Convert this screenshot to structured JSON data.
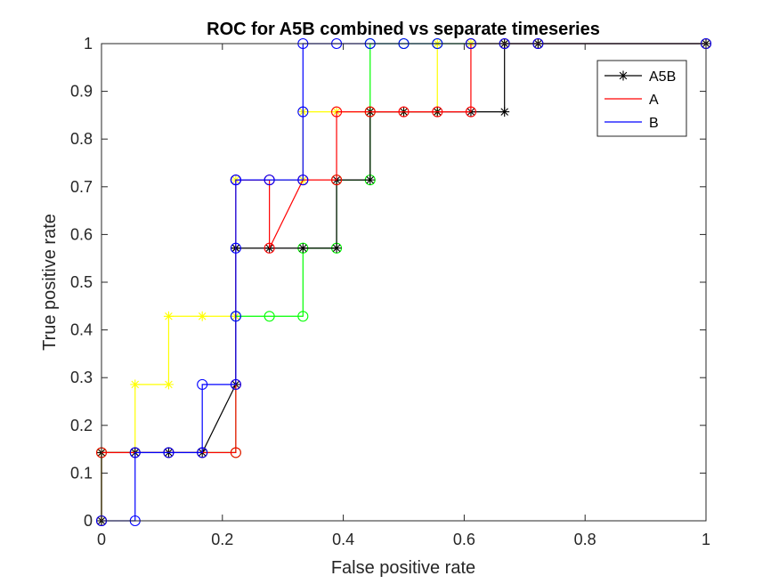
{
  "chart_data": {
    "type": "line",
    "title": "ROC for A5B combined vs separate timeseries",
    "xlabel": "False positive rate",
    "ylabel": "True positive rate",
    "xlim": [
      0,
      1
    ],
    "ylim": [
      0,
      1
    ],
    "xticks": [
      "0",
      "0.2",
      "0.4",
      "0.6",
      "0.8",
      "1"
    ],
    "yticks": [
      "0",
      "0.1",
      "0.2",
      "0.3",
      "0.4",
      "0.5",
      "0.6",
      "0.7",
      "0.8",
      "0.9",
      "1"
    ],
    "grid": false,
    "legend_position": "top-right",
    "series": [
      {
        "color": "#ffff00",
        "marker": "star",
        "x": [
          0,
          0,
          0.0556,
          0.0556,
          0.1111,
          0.1111,
          0.1667,
          0.2222,
          0.2222,
          0.2222,
          0.3333,
          0.3333,
          0.3889,
          0.4444,
          0.5,
          0.5556,
          0.5556,
          0.6111,
          0.6667,
          0.7222,
          1
        ],
        "y": [
          0,
          0.1429,
          0.1429,
          0.2857,
          0.2857,
          0.4286,
          0.4286,
          0.4286,
          0.5714,
          0.7143,
          0.7143,
          0.8571,
          0.8571,
          0.8571,
          0.8571,
          0.8571,
          1,
          1,
          1,
          1,
          1
        ]
      },
      {
        "color": "#00ff00",
        "marker": "circle",
        "x": [
          0,
          0,
          0.0556,
          0.1111,
          0.1667,
          0.2222,
          0.2222,
          0.2778,
          0.3333,
          0.3333,
          0.3889,
          0.3889,
          0.4444,
          0.4444,
          0.4444,
          0.5,
          0.5556,
          0.6111,
          0.6667,
          0.7222,
          1
        ],
        "y": [
          0,
          0.1429,
          0.1429,
          0.1429,
          0.1429,
          0.1429,
          0.4286,
          0.4286,
          0.4286,
          0.5714,
          0.5714,
          0.7143,
          0.7143,
          0.8571,
          1,
          1,
          1,
          1,
          1,
          1,
          1
        ]
      },
      {
        "name": "A5B",
        "color": "#000000",
        "marker": "star",
        "x": [
          0,
          0,
          0.0556,
          0.1111,
          0.1667,
          0.2222,
          0.2222,
          0.2222,
          0.2778,
          0.3333,
          0.3889,
          0.3889,
          0.4444,
          0.4444,
          0.5,
          0.5556,
          0.6111,
          0.6667,
          0.6667,
          0.7222,
          1
        ],
        "y": [
          0,
          0.1429,
          0.1429,
          0.1429,
          0.1429,
          0.2857,
          0.5714,
          0.5714,
          0.5714,
          0.5714,
          0.5714,
          0.7143,
          0.7143,
          0.8571,
          0.8571,
          0.8571,
          0.8571,
          0.8571,
          1,
          1,
          1
        ]
      },
      {
        "name": "A",
        "color": "#ff0000",
        "marker": "circle",
        "x": [
          0,
          0,
          0.0556,
          0.1111,
          0.1667,
          0.2222,
          0.2222,
          0.2222,
          0.2778,
          0.2778,
          0.3333,
          0.3889,
          0.3889,
          0.4444,
          0.5,
          0.5556,
          0.6111,
          0.6111,
          0.6667,
          0.7222,
          1
        ],
        "y": [
          0,
          0.1429,
          0.1429,
          0.1429,
          0.1429,
          0.1429,
          0.2857,
          0.7143,
          0.7143,
          0.5714,
          0.7143,
          0.7143,
          0.8571,
          0.8571,
          0.8571,
          0.8571,
          0.8571,
          1,
          1,
          1,
          1
        ]
      },
      {
        "name": "B",
        "color": "#0000ff",
        "marker": "circle",
        "x": [
          0,
          0.0556,
          0.0556,
          0.1111,
          0.1667,
          0.1667,
          0.2222,
          0.2222,
          0.2222,
          0.2222,
          0.2222,
          0.2778,
          0.3333,
          0.3333,
          0.3333,
          0.3889,
          0.4444,
          0.5,
          0.5556,
          0.6111,
          0.6667,
          0.7222,
          1
        ],
        "y": [
          0,
          0,
          0.1429,
          0.1429,
          0.1429,
          0.2857,
          0.2857,
          0.4286,
          0.5714,
          0.7143,
          0.7143,
          0.7143,
          0.7143,
          0.8571,
          1,
          1,
          1,
          1,
          1,
          1,
          1,
          1,
          1
        ]
      }
    ]
  }
}
